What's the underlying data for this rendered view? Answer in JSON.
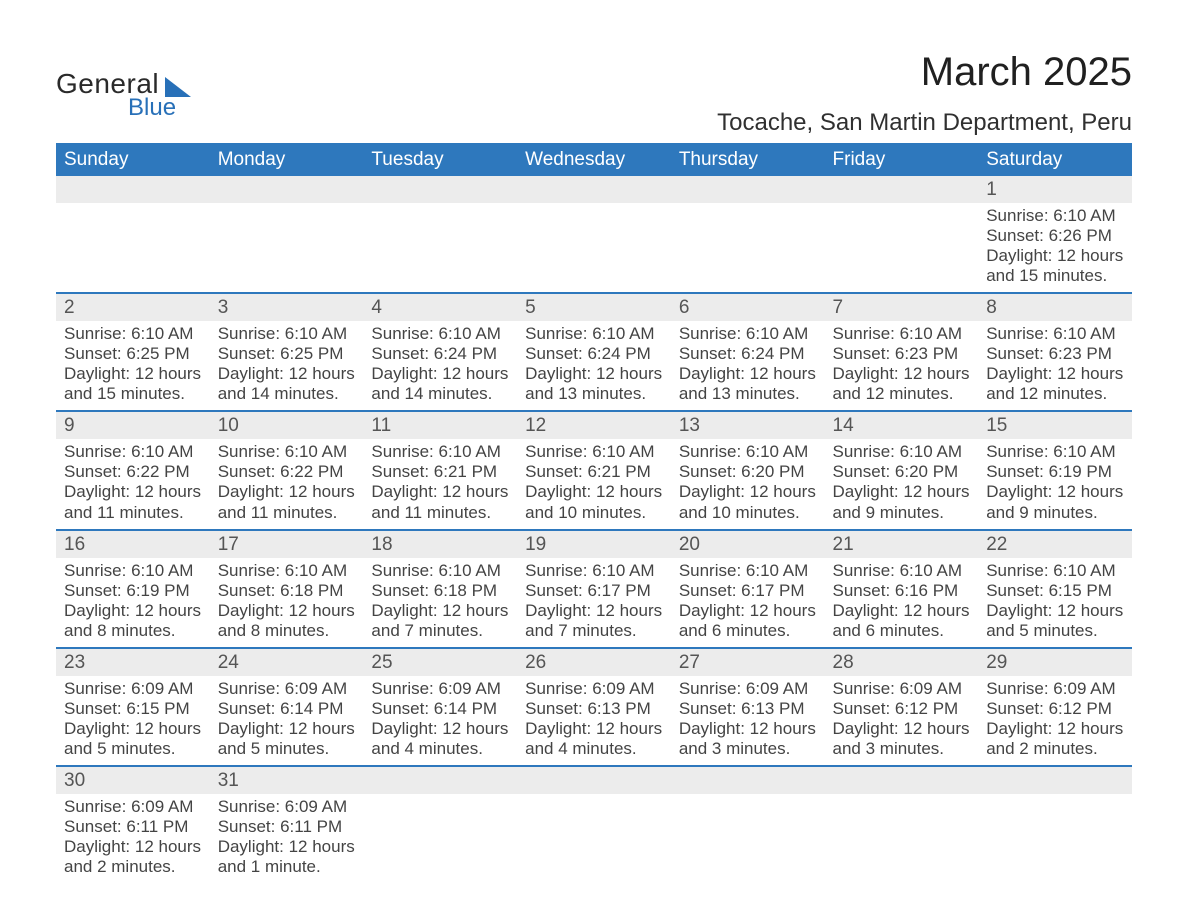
{
  "logo": {
    "text1": "General",
    "text2": "Blue"
  },
  "title": "March 2025",
  "location": "Tocache, San Martin Department, Peru",
  "colors": {
    "header_bg": "#2e78bd",
    "header_text": "#ffffff",
    "row_alt_bg": "#ececec",
    "row_border": "#2e78bd",
    "body_text": "#444444",
    "logo_blue": "#2870b8"
  },
  "typography": {
    "title_fontsize": 40,
    "location_fontsize": 24,
    "dayhead_fontsize": 19,
    "daynum_fontsize": 19,
    "detail_fontsize": 17,
    "font_family": "Arial"
  },
  "day_headers": [
    "Sunday",
    "Monday",
    "Tuesday",
    "Wednesday",
    "Thursday",
    "Friday",
    "Saturday"
  ],
  "weeks": [
    {
      "nums": [
        "",
        "",
        "",
        "",
        "",
        "",
        "1"
      ],
      "details": [
        "",
        "",
        "",
        "",
        "",
        "",
        "Sunrise: 6:10 AM\nSunset: 6:26 PM\nDaylight: 12 hours and 15 minutes."
      ]
    },
    {
      "nums": [
        "2",
        "3",
        "4",
        "5",
        "6",
        "7",
        "8"
      ],
      "details": [
        "Sunrise: 6:10 AM\nSunset: 6:25 PM\nDaylight: 12 hours and 15 minutes.",
        "Sunrise: 6:10 AM\nSunset: 6:25 PM\nDaylight: 12 hours and 14 minutes.",
        "Sunrise: 6:10 AM\nSunset: 6:24 PM\nDaylight: 12 hours and 14 minutes.",
        "Sunrise: 6:10 AM\nSunset: 6:24 PM\nDaylight: 12 hours and 13 minutes.",
        "Sunrise: 6:10 AM\nSunset: 6:24 PM\nDaylight: 12 hours and 13 minutes.",
        "Sunrise: 6:10 AM\nSunset: 6:23 PM\nDaylight: 12 hours and 12 minutes.",
        "Sunrise: 6:10 AM\nSunset: 6:23 PM\nDaylight: 12 hours and 12 minutes."
      ]
    },
    {
      "nums": [
        "9",
        "10",
        "11",
        "12",
        "13",
        "14",
        "15"
      ],
      "details": [
        "Sunrise: 6:10 AM\nSunset: 6:22 PM\nDaylight: 12 hours and 11 minutes.",
        "Sunrise: 6:10 AM\nSunset: 6:22 PM\nDaylight: 12 hours and 11 minutes.",
        "Sunrise: 6:10 AM\nSunset: 6:21 PM\nDaylight: 12 hours and 11 minutes.",
        "Sunrise: 6:10 AM\nSunset: 6:21 PM\nDaylight: 12 hours and 10 minutes.",
        "Sunrise: 6:10 AM\nSunset: 6:20 PM\nDaylight: 12 hours and 10 minutes.",
        "Sunrise: 6:10 AM\nSunset: 6:20 PM\nDaylight: 12 hours and 9 minutes.",
        "Sunrise: 6:10 AM\nSunset: 6:19 PM\nDaylight: 12 hours and 9 minutes."
      ]
    },
    {
      "nums": [
        "16",
        "17",
        "18",
        "19",
        "20",
        "21",
        "22"
      ],
      "details": [
        "Sunrise: 6:10 AM\nSunset: 6:19 PM\nDaylight: 12 hours and 8 minutes.",
        "Sunrise: 6:10 AM\nSunset: 6:18 PM\nDaylight: 12 hours and 8 minutes.",
        "Sunrise: 6:10 AM\nSunset: 6:18 PM\nDaylight: 12 hours and 7 minutes.",
        "Sunrise: 6:10 AM\nSunset: 6:17 PM\nDaylight: 12 hours and 7 minutes.",
        "Sunrise: 6:10 AM\nSunset: 6:17 PM\nDaylight: 12 hours and 6 minutes.",
        "Sunrise: 6:10 AM\nSunset: 6:16 PM\nDaylight: 12 hours and 6 minutes.",
        "Sunrise: 6:10 AM\nSunset: 6:15 PM\nDaylight: 12 hours and 5 minutes."
      ]
    },
    {
      "nums": [
        "23",
        "24",
        "25",
        "26",
        "27",
        "28",
        "29"
      ],
      "details": [
        "Sunrise: 6:09 AM\nSunset: 6:15 PM\nDaylight: 12 hours and 5 minutes.",
        "Sunrise: 6:09 AM\nSunset: 6:14 PM\nDaylight: 12 hours and 5 minutes.",
        "Sunrise: 6:09 AM\nSunset: 6:14 PM\nDaylight: 12 hours and 4 minutes.",
        "Sunrise: 6:09 AM\nSunset: 6:13 PM\nDaylight: 12 hours and 4 minutes.",
        "Sunrise: 6:09 AM\nSunset: 6:13 PM\nDaylight: 12 hours and 3 minutes.",
        "Sunrise: 6:09 AM\nSunset: 6:12 PM\nDaylight: 12 hours and 3 minutes.",
        "Sunrise: 6:09 AM\nSunset: 6:12 PM\nDaylight: 12 hours and 2 minutes."
      ]
    },
    {
      "nums": [
        "30",
        "31",
        "",
        "",
        "",
        "",
        ""
      ],
      "details": [
        "Sunrise: 6:09 AM\nSunset: 6:11 PM\nDaylight: 12 hours and 2 minutes.",
        "Sunrise: 6:09 AM\nSunset: 6:11 PM\nDaylight: 12 hours and 1 minute.",
        "",
        "",
        "",
        "",
        ""
      ]
    }
  ]
}
